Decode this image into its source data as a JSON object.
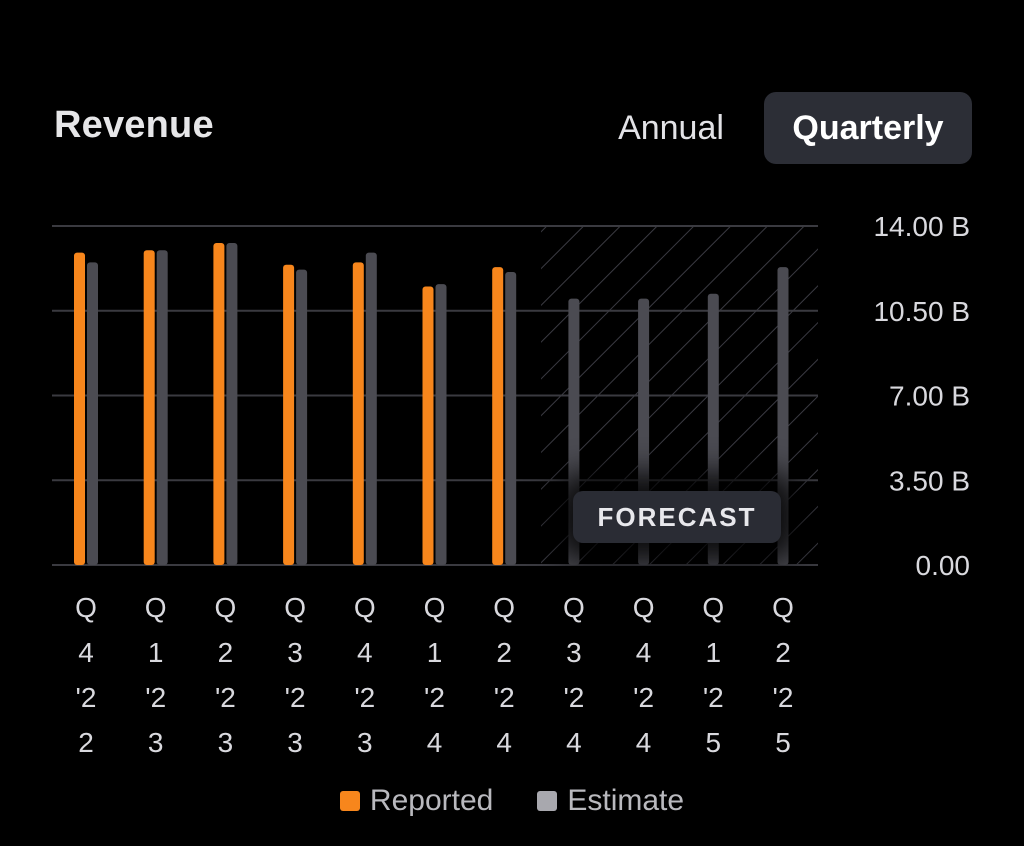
{
  "header": {
    "title": "Revenue",
    "toggle_annual": "Annual",
    "toggle_quarterly": "Quarterly",
    "selected": "Quarterly"
  },
  "forecast_label": "FORECAST",
  "colors": {
    "reported": "#f7861c",
    "estimate": "#4b4b52",
    "grid": "#3a3a40",
    "forecast_hatch": "#3a3a42"
  },
  "chart_data": {
    "type": "bar",
    "categories": [
      "Q 4 '22",
      "Q 1 '23",
      "Q 2 '23",
      "Q 3 '23",
      "Q 4 '23",
      "Q 1 '24",
      "Q 2 '24",
      "Q 3 '24",
      "Q 4 '24",
      "Q 1 '25",
      "Q 2 '25"
    ],
    "category_lines": [
      [
        "Q",
        "4",
        "'2",
        "2"
      ],
      [
        "Q",
        "1",
        "'2",
        "3"
      ],
      [
        "Q",
        "2",
        "'2",
        "3"
      ],
      [
        "Q",
        "3",
        "'2",
        "3"
      ],
      [
        "Q",
        "4",
        "'2",
        "3"
      ],
      [
        "Q",
        "1",
        "'2",
        "4"
      ],
      [
        "Q",
        "2",
        "'2",
        "4"
      ],
      [
        "Q",
        "3",
        "'2",
        "4"
      ],
      [
        "Q",
        "4",
        "'2",
        "4"
      ],
      [
        "Q",
        "1",
        "'2",
        "5"
      ],
      [
        "Q",
        "2",
        "'2",
        "5"
      ]
    ],
    "series": [
      {
        "name": "Reported",
        "values": [
          12.9,
          13.0,
          13.3,
          12.4,
          12.5,
          11.5,
          12.3,
          null,
          null,
          null,
          null
        ]
      },
      {
        "name": "Estimate",
        "values": [
          12.5,
          13.0,
          13.3,
          12.2,
          12.9,
          11.6,
          12.1,
          11.0,
          11.0,
          11.2,
          12.3
        ]
      }
    ],
    "yticks": [
      "14.00 B",
      "10.50 B",
      "7.00 B",
      "3.50 B",
      "0.00"
    ],
    "ytick_values": [
      14,
      10.5,
      7,
      3.5,
      0
    ],
    "ylim": [
      0,
      14
    ],
    "forecast_start_index": 7,
    "grid": true,
    "legend": "bottom-center"
  }
}
